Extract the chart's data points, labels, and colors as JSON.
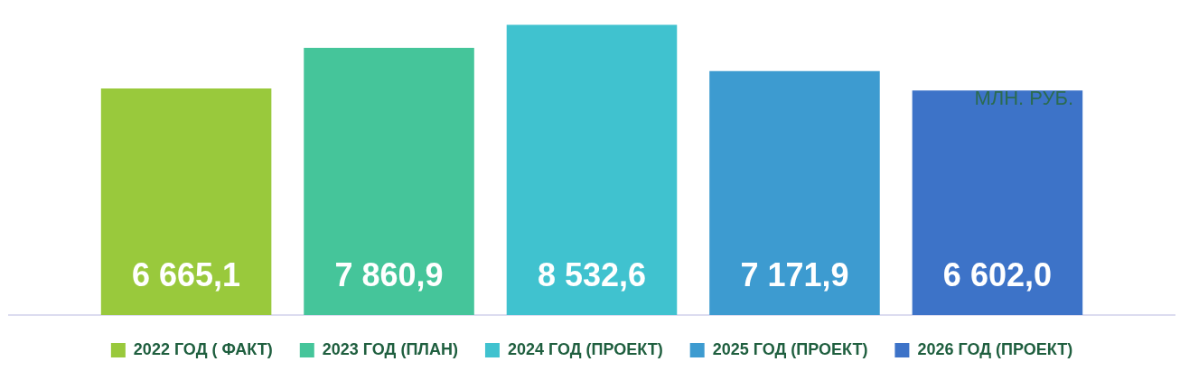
{
  "chart_data": {
    "type": "bar",
    "categories": [
      null
    ],
    "series": [
      {
        "name": "2022 ГОД ( ФАКТ)",
        "color": "#99c93c",
        "values": [
          6665.1
        ],
        "value_labels": [
          "6 665,1"
        ]
      },
      {
        "name": "2023 ГОД (ПЛАН)",
        "color": "#45c59a",
        "values": [
          7860.9
        ],
        "value_labels": [
          "7 860,9"
        ]
      },
      {
        "name": "2024 ГОД (ПРОЕКТ)",
        "color": "#40c2cf",
        "values": [
          8532.6
        ],
        "value_labels": [
          "8 532,6"
        ]
      },
      {
        "name": "2025 ГОД (ПРОЕКТ)",
        "color": "#3d9bd0",
        "values": [
          7171.9
        ],
        "value_labels": [
          "7 171,9"
        ]
      },
      {
        "name": "2026 ГОД (ПРОЕКТ)",
        "color": "#3d73c8",
        "values": [
          6602.0
        ],
        "value_labels": [
          "6 602,0"
        ]
      }
    ],
    "annotations": [
      "МЛН. РУБ."
    ],
    "grid": false,
    "legend": "bottom",
    "tick_labels": false
  }
}
